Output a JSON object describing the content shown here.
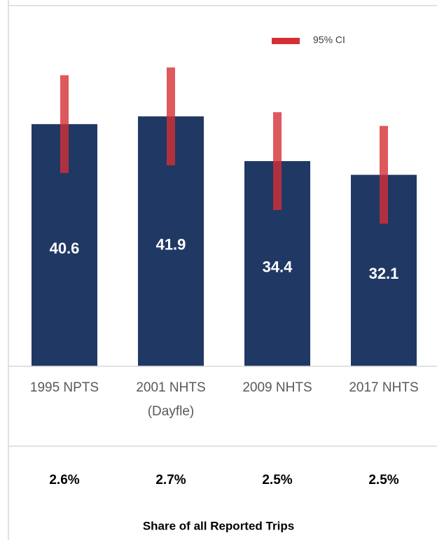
{
  "chart_data": {
    "type": "bar",
    "categories": [
      [
        "1995 NPTS"
      ],
      [
        "2001 NHTS",
        "(Dayfle)"
      ],
      [
        "2009 NHTS"
      ],
      [
        "2017 NHTS"
      ]
    ],
    "values": [
      40.6,
      41.9,
      34.4,
      32.1
    ],
    "errors": [
      8.2,
      8.2,
      8.2,
      8.2
    ],
    "error_name": "95% CI",
    "color": "#203864",
    "error_color": "#d42f35",
    "ylim": [
      0,
      60
    ],
    "legend": "top-right",
    "share_values": [
      "2.6%",
      "2.7%",
      "2.5%",
      "2.5%"
    ],
    "share_title": "Share of all Reported Trips"
  }
}
